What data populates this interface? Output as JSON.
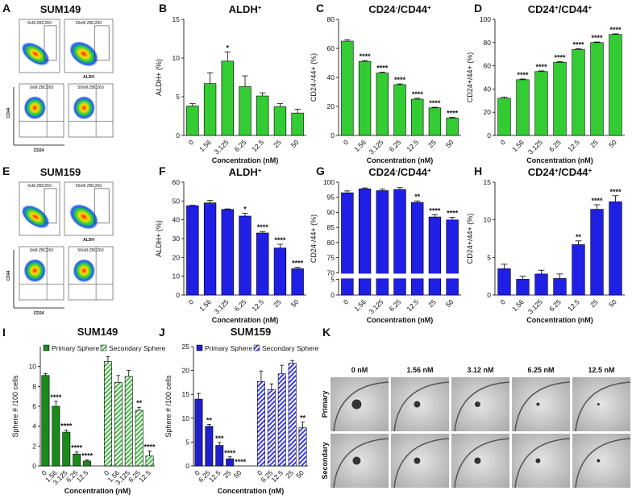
{
  "panel_labels": [
    "A",
    "B",
    "C",
    "D",
    "E",
    "F",
    "G",
    "H",
    "I",
    "J",
    "K"
  ],
  "flow": [
    {
      "title": "SUM149",
      "plots": [
        "0nM ZBC260",
        "50nM ZBC260",
        "0nM ZBC260",
        "50nM ZBC260"
      ],
      "axis_top": "ALDH",
      "axis_y": "CD44",
      "axis_x": "CD24"
    },
    {
      "title": "SUM159",
      "plots": [
        "0nM ZBC260",
        "50nM ZBC260",
        "0nM ZBC260",
        "50nM ZBC260"
      ],
      "axis_top": "ALDH",
      "axis_y": "CD44",
      "axis_x": "CD24"
    }
  ],
  "chart_data": [
    {
      "type": "bar",
      "title_parts": [
        {
          "text": "ALDH"
        },
        {
          "text": "+",
          "sup": true
        }
      ],
      "categories": [
        "0",
        "1.56",
        "3.125",
        "6.25",
        "12.5",
        "25",
        "50"
      ],
      "values": [
        3.8,
        6.7,
        9.6,
        6.3,
        5.1,
        3.7,
        2.9
      ],
      "errors": [
        0.3,
        1.4,
        1.2,
        1.4,
        0.4,
        0.4,
        0.5
      ],
      "annotations": [
        null,
        null,
        "*",
        null,
        null,
        null,
        null
      ],
      "color": "#33cc33",
      "ylim": [
        0,
        15
      ],
      "yticks": [
        0,
        5,
        10,
        15
      ],
      "y_label": "ALDH+ (%)",
      "x_label": "Concentration (nM)"
    },
    {
      "type": "bar",
      "title_parts": [
        {
          "text": "CD24"
        },
        {
          "text": "-",
          "sup": true
        },
        {
          "text": "/CD44"
        },
        {
          "text": "+",
          "sup": true
        }
      ],
      "categories": [
        "0",
        "1.56",
        "3.125",
        "6.25",
        "12.5",
        "25",
        "50"
      ],
      "values": [
        65,
        51,
        43,
        35,
        25,
        19,
        12
      ],
      "errors": [
        1,
        0.6,
        0.6,
        0.5,
        0.6,
        0.4,
        0.5
      ],
      "annotations": [
        null,
        "****",
        "****",
        "****",
        "****",
        "****",
        "****"
      ],
      "color": "#33cc33",
      "ylim": [
        0,
        80
      ],
      "yticks": [
        0,
        20,
        40,
        60,
        80
      ],
      "y_label": "CD24-/44+ (%)",
      "x_label": "Concentration (nM)"
    },
    {
      "type": "bar",
      "title_parts": [
        {
          "text": "CD24"
        },
        {
          "text": "+",
          "sup": true
        },
        {
          "text": "/CD44"
        },
        {
          "text": "+",
          "sup": true
        }
      ],
      "categories": [
        "0",
        "1.56",
        "3.125",
        "6.25",
        "12.5",
        "25",
        "50"
      ],
      "values": [
        32,
        48,
        55,
        63,
        74,
        80,
        87
      ],
      "errors": [
        1,
        0.6,
        0.6,
        0.6,
        0.7,
        0.5,
        0.5
      ],
      "annotations": [
        null,
        "****",
        "****",
        "****",
        "****",
        "****",
        "****"
      ],
      "color": "#33cc33",
      "ylim": [
        0,
        100
      ],
      "yticks": [
        0,
        20,
        40,
        60,
        80,
        100
      ],
      "y_label": "CD24+/44+ (%)",
      "x_label": "Concentration (nM)"
    },
    {
      "type": "bar",
      "title_parts": [
        {
          "text": "ALDH"
        },
        {
          "text": "+",
          "sup": true
        }
      ],
      "categories": [
        "0",
        "1.56",
        "3.125",
        "6.25",
        "12.5",
        "25",
        "50"
      ],
      "values": [
        47.5,
        49,
        45.5,
        42,
        33,
        25,
        14
      ],
      "errors": [
        0.2,
        1.3,
        0.3,
        1.5,
        0.8,
        2,
        0.8
      ],
      "annotations": [
        null,
        null,
        null,
        "*",
        "****",
        "****",
        "****"
      ],
      "color": "#1f1fe6",
      "ylim": [
        0,
        60
      ],
      "yticks": [
        0,
        10,
        20,
        30,
        40,
        50,
        60
      ],
      "y_label": "ALDH+ (%)",
      "x_label": "Concentration (nM)"
    },
    {
      "type": "bar",
      "title_parts": [
        {
          "text": "CD24"
        },
        {
          "text": "-",
          "sup": true
        },
        {
          "text": "/CD44"
        },
        {
          "text": "+",
          "sup": true
        }
      ],
      "categories": [
        "0",
        "1.56",
        "3.125",
        "6.25",
        "12.5",
        "25",
        "50"
      ],
      "values": [
        96.5,
        97.8,
        97.2,
        97.6,
        93.3,
        88.5,
        87.5
      ],
      "errors": [
        0.6,
        0.3,
        0.5,
        0.6,
        0.5,
        0.7,
        0.9
      ],
      "annotations": [
        null,
        null,
        null,
        null,
        "**",
        "****",
        "****"
      ],
      "color": "#1f1fe6",
      "ylim": [
        0,
        100
      ],
      "axis_break": [
        5,
        70
      ],
      "yticks": [
        0,
        5,
        70,
        75,
        80,
        85,
        90,
        95,
        100
      ],
      "y_label": "CD24-/44+ (%)",
      "x_label": "Concentration (nM)"
    },
    {
      "type": "bar",
      "title_parts": [
        {
          "text": "CD24"
        },
        {
          "text": "+",
          "sup": true
        },
        {
          "text": "/CD44"
        },
        {
          "text": "+",
          "sup": true
        }
      ],
      "categories": [
        "0",
        "1.56",
        "3.125",
        "6.25",
        "12.5",
        "25",
        "50"
      ],
      "values": [
        3.5,
        2.1,
        2.8,
        2.2,
        6.7,
        11.4,
        12.4
      ],
      "errors": [
        0.6,
        0.4,
        0.5,
        0.6,
        0.5,
        0.6,
        0.8
      ],
      "annotations": [
        null,
        null,
        null,
        null,
        "**",
        "****",
        "****"
      ],
      "color": "#1f1fe6",
      "ylim": [
        0,
        15
      ],
      "yticks": [
        0,
        5,
        10,
        15
      ],
      "y_label": "CD24+/44+ (%)",
      "x_label": "Concentration (nM)"
    },
    {
      "type": "grouped_bar",
      "title_parts": [
        {
          "text": "SUM149"
        }
      ],
      "categories": [
        "0",
        "1.56",
        "3.125",
        "6.25",
        "12.5"
      ],
      "series": [
        {
          "name": "Primary Sphere",
          "color": "#1a8a1a",
          "values": [
            9.1,
            6.0,
            3.4,
            1.2,
            0.5
          ],
          "errors": [
            0.2,
            0.5,
            0.2,
            0.2,
            0.1
          ],
          "annotations": [
            null,
            "****",
            "****",
            "****",
            "****"
          ]
        },
        {
          "name": "Secondary Sphere",
          "color": "#44bb44",
          "pattern": "hatch",
          "values": [
            10.5,
            8.4,
            9.0,
            5.6,
            1.0
          ],
          "errors": [
            0.5,
            0.7,
            0.6,
            0.3,
            0.5
          ],
          "annotations": [
            null,
            null,
            null,
            "**",
            "****"
          ]
        }
      ],
      "ylim": [
        0,
        12
      ],
      "yticks": [
        0,
        2,
        4,
        6,
        8,
        10
      ],
      "y_label": "Sphere # /100 cells",
      "x_label": "Concentration (nM)",
      "legend": "top"
    },
    {
      "type": "grouped_bar",
      "title_parts": [
        {
          "text": "SUM159"
        }
      ],
      "categories": [
        "0",
        "6.25",
        "12.5",
        "25",
        "50"
      ],
      "series": [
        {
          "name": "Primary Sphere",
          "color": "#1f1fcc",
          "values": [
            14,
            8.3,
            4.3,
            1.5,
            0
          ],
          "errors": [
            1.2,
            0.4,
            0.6,
            0.4,
            0
          ],
          "annotations": [
            null,
            "**",
            "***",
            "****",
            "****"
          ]
        },
        {
          "name": "Secondary Sphere",
          "color": "#3a3aee",
          "pattern": "hatch",
          "values": [
            17.7,
            16,
            19.3,
            21.5,
            8
          ],
          "errors": [
            2.2,
            1.2,
            1.8,
            0.6,
            1.2
          ],
          "annotations": [
            null,
            null,
            null,
            null,
            "**"
          ]
        }
      ],
      "ylim": [
        0,
        25
      ],
      "yticks": [
        0,
        5,
        10,
        15,
        20,
        25
      ],
      "y_label": "Sphere # /100 cells",
      "x_label": "Concentration (nM)",
      "legend": "top"
    }
  ],
  "spheres": {
    "columns": [
      "0 nM",
      "1.56 nM",
      "3.12 nM",
      "6.25 nM",
      "12.5 nM"
    ],
    "rows": [
      "Primary",
      "Secondary"
    ]
  }
}
